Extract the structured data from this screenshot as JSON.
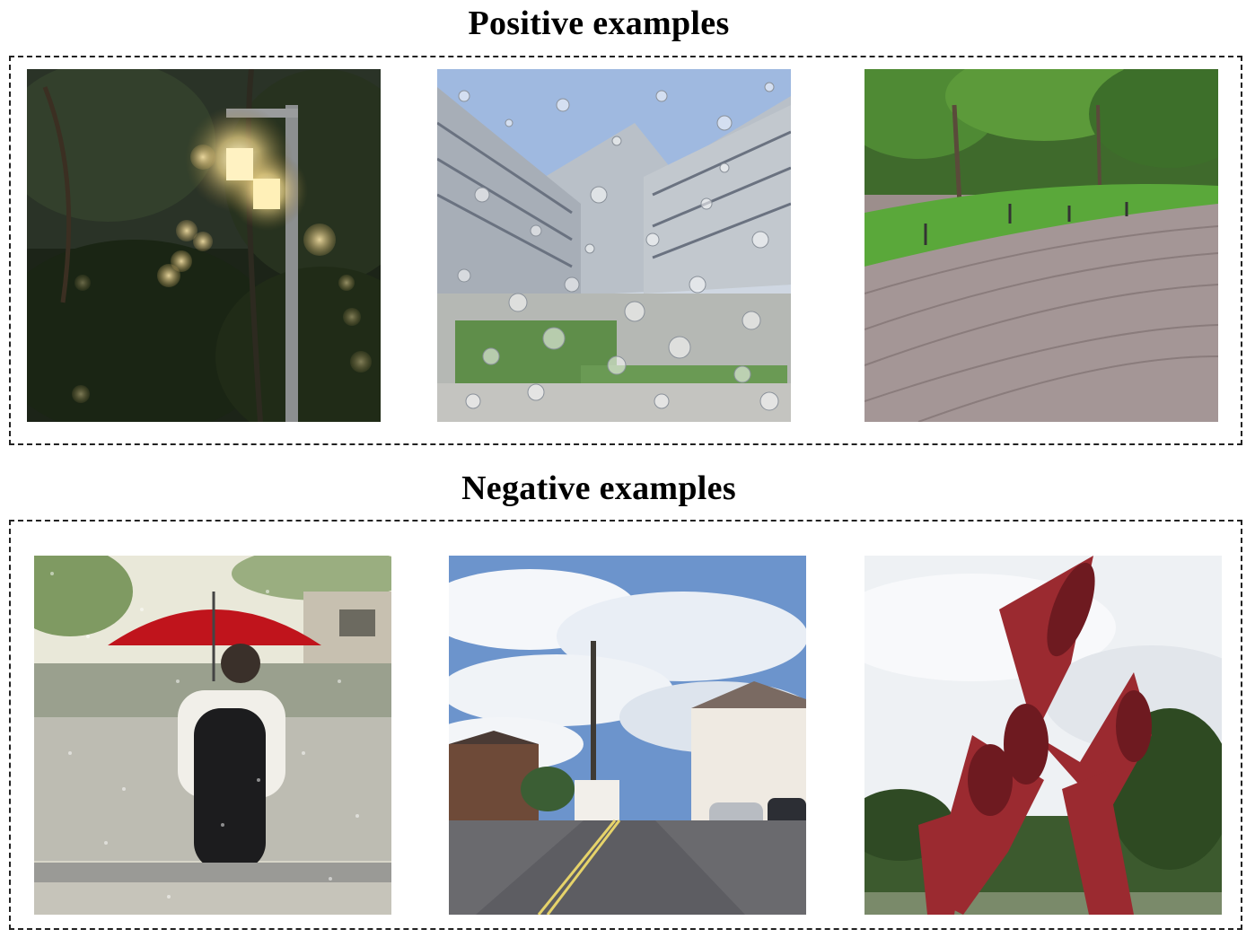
{
  "sections": {
    "positive": {
      "title": "Positive examples",
      "images": [
        {
          "icon": "night-streetlamp-photo"
        },
        {
          "icon": "raindrop-building-photo"
        },
        {
          "icon": "park-boardwalk-photo"
        }
      ]
    },
    "negative": {
      "title": "Negative examples",
      "images": [
        {
          "icon": "red-umbrella-rain-photo"
        },
        {
          "icon": "cloudy-street-photo"
        },
        {
          "icon": "red-sculpture-photo"
        }
      ]
    }
  },
  "colors": {
    "border": "#222222",
    "umbrella": "#c0141c",
    "sculpture": "#9b2a30",
    "sky": "#9cc2e8",
    "grass": "#5aa83a"
  }
}
